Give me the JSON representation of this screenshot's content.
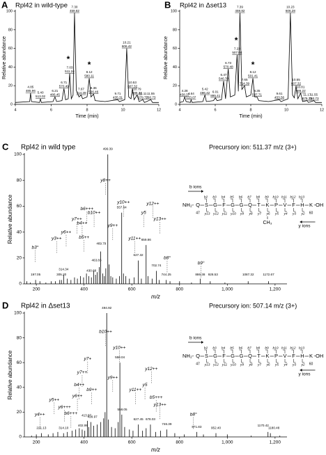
{
  "chart_data": [
    {
      "type": "line",
      "panel": "A",
      "title": "Rpl42 in wild-type",
      "xlabel": "Time (min)",
      "ylabel": "Relative abundance",
      "color": "#000000",
      "xlim": [
        4,
        12
      ],
      "ylim": [
        0,
        100
      ],
      "xticks": [
        4,
        6,
        8,
        10,
        12
      ],
      "yticks": [
        0,
        20,
        40,
        60,
        80,
        100
      ],
      "x": [
        4.0,
        4.8,
        4.85,
        4.9,
        5.35,
        5.4,
        5.45,
        6.1,
        6.21,
        6.3,
        6.6,
        6.71,
        6.8,
        6.95,
        7.03,
        7.12,
        7.22,
        7.3,
        7.4,
        7.55,
        7.67,
        7.75,
        8.0,
        8.12,
        8.22,
        8.36,
        8.45,
        9.0,
        9.71,
        9.8,
        10.1,
        10.21,
        10.32,
        10.45,
        10.53,
        10.62,
        10.79,
        10.9,
        11.11,
        11.2,
        11.55,
        11.65,
        12.0
      ],
      "values": [
        2,
        3,
        12,
        3,
        2,
        6,
        2,
        3,
        8,
        3,
        4,
        17,
        5,
        6,
        33,
        6,
        10,
        98,
        15,
        8,
        10,
        6,
        8,
        28,
        8,
        11,
        4,
        3,
        5,
        3,
        5,
        60,
        8,
        6,
        17,
        5,
        10,
        3,
        5,
        2,
        5,
        2,
        2
      ],
      "peak_labels": [
        {
          "x": 4.85,
          "y": 12,
          "text": [
            "4.85",
            "485.96"
          ]
        },
        {
          "x": 5.4,
          "y": 6,
          "text": [
            "5.40",
            "513.02"
          ]
        },
        {
          "x": 6.21,
          "y": 8,
          "text": [
            "6.21",
            "486.45"
          ]
        },
        {
          "x": 6.71,
          "y": 17,
          "text": [
            "6.71",
            "570.49"
          ]
        },
        {
          "x": 7.03,
          "y": 33,
          "text": [
            "7.03",
            "511.24"
          ]
        },
        {
          "x": 7.3,
          "y": 98,
          "text": [
            "7.30",
            "459.82"
          ]
        },
        {
          "x": 7.67,
          "y": 10,
          "text": [
            "7.67",
            "714.39"
          ]
        },
        {
          "x": 8.12,
          "y": 28,
          "text": [
            "8.12",
            "580.11"
          ]
        },
        {
          "x": 8.36,
          "y": 11,
          "text": [
            "8.36",
            "506.46"
          ]
        },
        {
          "x": 9.71,
          "y": 5,
          "text": [
            "9.71",
            "435.31"
          ]
        },
        {
          "x": 10.21,
          "y": 60,
          "text": [
            "10.21",
            "606.42"
          ]
        },
        {
          "x": 10.53,
          "y": 17,
          "text": [
            "10.53",
            "607.32"
          ]
        },
        {
          "x": 10.79,
          "y": 10,
          "text": [
            "10.79",
            "686.34"
          ]
        },
        {
          "x": 11.11,
          "y": 5,
          "text": [
            "11.11",
            "879.72"
          ]
        },
        {
          "x": 11.55,
          "y": 5,
          "text": [
            "11.55",
            "760.73"
          ]
        }
      ],
      "stars": [
        {
          "x": 6.95,
          "y": 48,
          "text": "*"
        },
        {
          "x": 8.12,
          "y": 42,
          "text": "*"
        }
      ]
    },
    {
      "type": "line",
      "panel": "B",
      "title": "Rpl42 in Δset13",
      "xlabel": "Time (min)",
      "ylabel": "Relative abundance",
      "color": "#000000",
      "xlim": [
        4,
        12
      ],
      "ylim": [
        0,
        100
      ],
      "xticks": [
        4,
        6,
        8,
        10,
        12
      ],
      "yticks": [
        0,
        20,
        40,
        60,
        80,
        100
      ],
      "x": [
        4.0,
        4.2,
        4.28,
        4.36,
        4.6,
        4.64,
        4.7,
        5.3,
        5.42,
        5.5,
        5.9,
        6.01,
        6.1,
        6.35,
        6.47,
        6.58,
        6.73,
        6.85,
        7.1,
        7.23,
        7.3,
        7.39,
        7.5,
        7.65,
        7.75,
        8.0,
        8.12,
        8.22,
        8.35,
        8.45,
        9.0,
        9.61,
        9.7,
        10.1,
        10.23,
        10.35,
        10.45,
        10.55,
        10.65,
        10.81,
        10.92,
        11.17,
        11.25,
        11.55,
        11.65,
        12.0
      ],
      "values": [
        2,
        3,
        8,
        3,
        2,
        5,
        2,
        3,
        10,
        3,
        4,
        7,
        4,
        5,
        25,
        6,
        38,
        8,
        10,
        53,
        14,
        98,
        16,
        20,
        8,
        10,
        28,
        8,
        8,
        4,
        3,
        5,
        3,
        6,
        98,
        10,
        7,
        20,
        6,
        12,
        3,
        4,
        2,
        4,
        2,
        2
      ],
      "peak_labels": [
        {
          "x": 4.28,
          "y": 8,
          "text": [
            "4.28",
            "438.37"
          ]
        },
        {
          "x": 4.64,
          "y": 5,
          "text": [
            "4.64",
            "513.07"
          ]
        },
        {
          "x": 5.42,
          "y": 10,
          "text": [
            "5.42",
            "486.42"
          ]
        },
        {
          "x": 6.01,
          "y": 7,
          "text": [
            "6.01",
            "895.41"
          ]
        },
        {
          "x": 6.47,
          "y": 25,
          "text": [
            "6.47",
            "546.70"
          ]
        },
        {
          "x": 6.73,
          "y": 38,
          "text": [
            "6.73",
            "570.48"
          ]
        },
        {
          "x": 7.23,
          "y": 53,
          "text": [
            "7.23",
            "507.04"
          ]
        },
        {
          "x": 7.39,
          "y": 98,
          "text": [
            "7.39",
            "459.82"
          ]
        },
        {
          "x": 7.65,
          "y": 20,
          "text": [
            "7.65",
            "714.39"
          ]
        },
        {
          "x": 8.12,
          "y": 28,
          "text": [
            "8.12",
            "501.41"
          ]
        },
        {
          "x": 8.35,
          "y": 8,
          "text": [
            "8.35",
            "587.71"
          ]
        },
        {
          "x": 9.61,
          "y": 5,
          "text": [
            "9.61",
            "453.56"
          ]
        },
        {
          "x": 10.23,
          "y": 98,
          "text": [
            "10.23",
            "606.28"
          ]
        },
        {
          "x": 10.55,
          "y": 20,
          "text": [
            "10.55",
            "607.32"
          ]
        },
        {
          "x": 10.81,
          "y": 12,
          "text": [
            "10.81",
            "686.22"
          ]
        },
        {
          "x": 11.17,
          "y": 4,
          "text": [
            "11.17",
            "879.73"
          ]
        },
        {
          "x": 11.55,
          "y": 4,
          "text": [
            "11.55",
            "760.73"
          ]
        }
      ],
      "stars": [
        {
          "x": 7.18,
          "y": 68,
          "text": "*"
        },
        {
          "x": 8.12,
          "y": 42,
          "text": "*"
        }
      ]
    },
    {
      "type": "stem",
      "panel": "C",
      "title": "Rpl42 in wild type",
      "precursor": "Precursory ion: 511.37 m/z (3+)",
      "xlabel": "m/z",
      "ylabel": "Relative abundance",
      "color": "#000000",
      "xlim": [
        150,
        1250
      ],
      "ylim": [
        0,
        100
      ],
      "xticks": [
        200,
        400,
        600,
        800,
        {
          "value": 1000,
          "label": "1,000"
        },
        {
          "value": 1200,
          "label": "1,200"
        }
      ],
      "yticks": [
        0,
        20,
        40,
        60,
        80,
        100
      ],
      "x": [
        160,
        175,
        197.05,
        215,
        240,
        262,
        280,
        298,
        305.2,
        314.34,
        330,
        345,
        360,
        372,
        385,
        398,
        410,
        420,
        430.68,
        440,
        448,
        455,
        463.83,
        469.79,
        478,
        485,
        491,
        499.39,
        505,
        512,
        520,
        535,
        548,
        557.64,
        565,
        575,
        590,
        610,
        627.32,
        640,
        659.86,
        668,
        685,
        702.74,
        715,
        744.25,
        760,
        800,
        850,
        886.38,
        928.53,
        990,
        1087.32,
        1172.67
      ],
      "values": [
        2,
        1,
        3,
        2,
        1,
        2,
        2,
        3,
        3,
        7,
        4,
        3,
        5,
        4,
        6,
        5,
        8,
        6,
        5,
        10,
        7,
        9,
        13,
        25,
        8,
        6,
        12,
        100,
        15,
        6,
        5,
        4,
        6,
        55,
        8,
        6,
        4,
        5,
        18,
        4,
        30,
        6,
        4,
        10,
        3,
        3,
        2,
        2,
        1,
        4,
        2,
        1,
        2,
        2
      ],
      "mz_labels": [
        {
          "x": 197.05,
          "y": 6,
          "text": "197.05"
        },
        {
          "x": 305.2,
          "y": 6,
          "text": "305.20"
        },
        {
          "x": 314.34,
          "y": 10,
          "text": "314.34"
        },
        {
          "x": 430.68,
          "y": 9,
          "text": "430.68"
        },
        {
          "x": 452,
          "y": 17,
          "text": "463.83"
        },
        {
          "x": 472,
          "y": 30,
          "text": "469.79"
        },
        {
          "x": 499.39,
          "y": 103,
          "text": "499.39"
        },
        {
          "x": 557.64,
          "y": 58,
          "text": "557.64"
        },
        {
          "x": 627.32,
          "y": 21,
          "text": "627.32"
        },
        {
          "x": 659.86,
          "y": 33,
          "text": "659.86"
        },
        {
          "x": 702.74,
          "y": 13,
          "text": "702.74"
        },
        {
          "x": 744.25,
          "y": 6,
          "text": "744.25"
        },
        {
          "x": 886.38,
          "y": 6,
          "text": "886.38"
        },
        {
          "x": 940,
          "y": 6,
          "text": "928.53"
        },
        {
          "x": 1087.32,
          "y": 6,
          "text": "1087.32"
        },
        {
          "x": 1172.67,
          "y": 6,
          "text": "1172.67"
        }
      ],
      "ion_labels": [
        {
          "x": 195,
          "y": 28,
          "text": "b3°"
        },
        {
          "x": 285,
          "y": 35,
          "text": "y3++"
        },
        {
          "x": 325,
          "y": 40,
          "text": "y6++"
        },
        {
          "x": 370,
          "y": 50,
          "text": "y7++"
        },
        {
          "x": 400,
          "y": 36,
          "text": "b5++"
        },
        {
          "x": 392,
          "y": 47,
          "text": "b4++"
        },
        {
          "x": 412,
          "y": 58,
          "text": "b6+++"
        },
        {
          "x": 442,
          "y": 55,
          "text": "b10++"
        },
        {
          "x": 490,
          "y": 80,
          "text": "y8++"
        },
        {
          "x": 520,
          "y": 45,
          "text": "y9++"
        },
        {
          "x": 565,
          "y": 63,
          "text": "y10++"
        },
        {
          "x": 612,
          "y": 35,
          "text": "y11++"
        },
        {
          "x": 650,
          "y": 55,
          "text": "y5"
        },
        {
          "x": 688,
          "y": 62,
          "text": "y12++"
        },
        {
          "x": 718,
          "y": 50,
          "text": "y13++"
        },
        {
          "x": 748,
          "y": 20,
          "text": "b8°"
        },
        {
          "x": 890,
          "y": 16,
          "text": "b9°"
        }
      ],
      "sequence": {
        "b_label": "b ions",
        "y_label": "y ions",
        "n_term": "NH₂-",
        "c_term": "-OH",
        "residues": [
          "Q",
          "S",
          "G",
          "F",
          "G",
          "G",
          "Q",
          "T",
          "K",
          "P",
          "V",
          "F",
          "H",
          "K"
        ],
        "start": "47",
        "end": "60",
        "modification": "CH₃",
        "b": [
          "b2",
          "b3",
          "b4",
          "b5",
          "b6",
          "b7",
          "b8",
          "b9",
          "b10",
          "b11",
          "b12",
          "b13"
        ],
        "y": [
          "y13",
          "y12",
          "y11",
          "y10",
          "y9",
          "y8",
          "y7",
          "y6",
          "y5",
          "y4",
          "y3",
          "y2"
        ]
      }
    },
    {
      "type": "stem",
      "panel": "D",
      "title": "Rpl42 in Δset13",
      "precursor": "Precursory ion: 507.14 m/z (3+)",
      "xlabel": "m/z",
      "ylabel": "Relative abundance",
      "color": "#000000",
      "xlim": [
        150,
        1250
      ],
      "ylim": [
        0,
        100
      ],
      "xticks": [
        200,
        400,
        600,
        800,
        {
          "value": 1000,
          "label": "1,000"
        },
        {
          "value": 1200,
          "label": "1,200"
        }
      ],
      "yticks": [
        0,
        20,
        40,
        60,
        80,
        100
      ],
      "x": [
        180,
        200,
        221.13,
        250,
        270,
        290,
        314.1,
        330,
        350,
        365,
        380,
        392,
        402.99,
        413.87,
        420,
        428.97,
        440,
        455,
        470,
        482,
        488,
        494.92,
        502,
        515,
        530,
        543,
        550.04,
        558.05,
        570,
        590,
        605,
        627.45,
        645,
        660,
        678.03,
        700,
        720,
        746.39,
        780,
        820,
        871.83,
        900,
        952.4,
        1000,
        1100,
        1170.42,
        1180.48,
        1220
      ],
      "values": [
        1,
        2,
        3,
        2,
        3,
        4,
        3,
        4,
        5,
        6,
        7,
        6,
        5,
        13,
        8,
        12,
        9,
        10,
        12,
        15,
        20,
        100,
        14,
        8,
        7,
        12,
        60,
        18,
        8,
        6,
        5,
        10,
        5,
        7,
        10,
        4,
        5,
        6,
        3,
        2,
        4,
        2,
        3,
        2,
        1,
        4,
        3,
        1
      ],
      "mz_labels": [
        {
          "x": 221.13,
          "y": 6,
          "text": "221.13"
        },
        {
          "x": 314.1,
          "y": 6,
          "text": "314.10"
        },
        {
          "x": 395,
          "y": 8,
          "text": "402.99"
        },
        {
          "x": 410,
          "y": 16,
          "text": "413.87"
        },
        {
          "x": 435,
          "y": 15,
          "text": "428.97"
        },
        {
          "x": 494.92,
          "y": 103,
          "text": "494.92"
        },
        {
          "x": 550.04,
          "y": 63,
          "text": "550.04"
        },
        {
          "x": 560,
          "y": 21,
          "text": "558.05"
        },
        {
          "x": 627.45,
          "y": 13,
          "text": "627.45"
        },
        {
          "x": 678.03,
          "y": 13,
          "text": "678.03"
        },
        {
          "x": 746.39,
          "y": 9,
          "text": "746.39"
        },
        {
          "x": 871.83,
          "y": 7,
          "text": "871.83"
        },
        {
          "x": 952.4,
          "y": 6,
          "text": "952.40"
        },
        {
          "x": 1150,
          "y": 8,
          "text": "1170.42"
        },
        {
          "x": 1195,
          "y": 6,
          "text": "1180.48"
        }
      ],
      "ion_labels": [
        {
          "x": 215,
          "y": 18,
          "text": "y4++"
        },
        {
          "x": 275,
          "y": 30,
          "text": "y5++"
        },
        {
          "x": 318,
          "y": 24,
          "text": "y6+++"
        },
        {
          "x": 345,
          "y": 19,
          "text": "b6+++"
        },
        {
          "x": 372,
          "y": 33,
          "text": "y6++"
        },
        {
          "x": 380,
          "y": 42,
          "text": "b4++"
        },
        {
          "x": 392,
          "y": 52,
          "text": "y7++"
        },
        {
          "x": 415,
          "y": 63,
          "text": "y7+"
        },
        {
          "x": 432,
          "y": 38,
          "text": "b9++"
        },
        {
          "x": 490,
          "y": 85,
          "text": "b10++"
        },
        {
          "x": 520,
          "y": 48,
          "text": "y9++"
        },
        {
          "x": 548,
          "y": 72,
          "text": "y10++"
        },
        {
          "x": 615,
          "y": 38,
          "text": "y11++"
        },
        {
          "x": 655,
          "y": 42,
          "text": "y5"
        },
        {
          "x": 682,
          "y": 55,
          "text": "y12++"
        },
        {
          "x": 702,
          "y": 32,
          "text": "b5+++"
        },
        {
          "x": 718,
          "y": 26,
          "text": "y13++"
        },
        {
          "x": 858,
          "y": 18,
          "text": "b8°"
        }
      ],
      "sequence": {
        "b_label": "b ions",
        "y_label": "y ions",
        "n_term": "NH₂-",
        "c_term": "-OH",
        "residues": [
          "Q",
          "S",
          "G",
          "F",
          "G",
          "G",
          "Q",
          "T",
          "K",
          "P",
          "V",
          "F",
          "H",
          "K"
        ],
        "start": "47",
        "end": "60",
        "b": [
          "b2",
          "b3",
          "b4",
          "b5",
          "b6",
          "b7",
          "b8",
          "b9",
          "b10",
          "b11",
          "b12",
          "b13"
        ],
        "y": [
          "y13",
          "y12",
          "y11",
          "y10",
          "y9",
          "y8",
          "y7",
          "y6",
          "y5",
          "y4",
          "y3",
          "y2"
        ]
      }
    }
  ]
}
